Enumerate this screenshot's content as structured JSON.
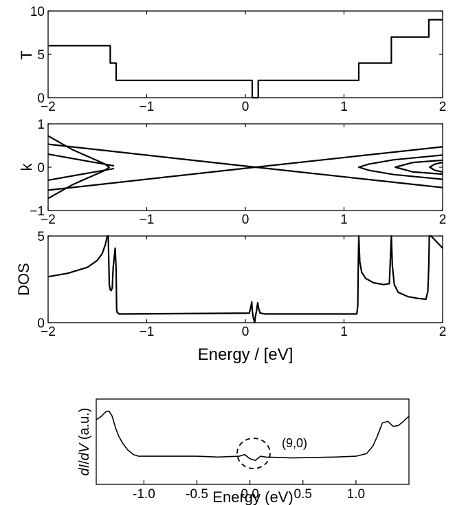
{
  "chart_data": [
    {
      "type": "line",
      "panel": "top",
      "ylabel": "T",
      "xlim": [
        -2,
        2
      ],
      "ylim": [
        0,
        10
      ],
      "xticks": [
        "−2",
        "−1",
        "0",
        "1",
        "2"
      ],
      "yticks": [
        "0",
        "5",
        "10"
      ],
      "series": [
        {
          "x": [
            -2,
            -1.37,
            -1.37,
            -1.31,
            -1.31,
            0.07,
            0.07,
            0.13,
            0.13,
            1.15,
            1.15,
            1.48,
            1.48,
            1.86,
            1.86,
            2.0
          ],
          "y": [
            6,
            6,
            4,
            4,
            2,
            2,
            0,
            0,
            2,
            2,
            4,
            4,
            7,
            7,
            9,
            9
          ]
        }
      ]
    },
    {
      "type": "line",
      "panel": "band",
      "ylabel": "k",
      "xlim": [
        -2,
        2
      ],
      "ylim": [
        -1,
        1
      ],
      "xticks": [
        "−2",
        "−1",
        "0",
        "1",
        "2"
      ],
      "yticks": [
        "−1",
        "0",
        "1"
      ],
      "series": [
        {
          "x": [
            -2.0,
            0.1,
            2.0
          ],
          "y": [
            0.53,
            0,
            0.47
          ]
        },
        {
          "x": [
            -2.0,
            0.1,
            2.0
          ],
          "y": [
            -0.53,
            0,
            -0.47
          ]
        },
        {
          "x": [
            -2.0,
            -1.33
          ],
          "y": [
            0.3,
            0.03
          ]
        },
        {
          "x": [
            -2.0,
            -1.33
          ],
          "y": [
            -0.3,
            -0.03
          ]
        },
        {
          "x": [
            -2.0,
            -1.75,
            -1.55,
            -1.43,
            -1.38,
            -1.43,
            -1.55,
            -1.75,
            -2.0
          ],
          "y": [
            0.72,
            0.4,
            0.2,
            0.08,
            0,
            -0.08,
            -0.2,
            -0.4,
            -0.72
          ]
        },
        {
          "x": [
            2.0,
            1.5,
            1.25,
            1.15,
            1.25,
            1.5,
            2.0
          ],
          "y": [
            0.28,
            0.17,
            0.07,
            0,
            -0.07,
            -0.17,
            -0.28
          ]
        },
        {
          "x": [
            2.0,
            1.7,
            1.52,
            1.7,
            2.0
          ],
          "y": [
            0.16,
            0.11,
            0,
            -0.11,
            -0.16
          ]
        },
        {
          "x": [
            2.0,
            1.92,
            1.87,
            1.92,
            2.0
          ],
          "y": [
            0.11,
            0.07,
            0,
            -0.07,
            -0.11
          ]
        }
      ]
    },
    {
      "type": "line",
      "panel": "dos",
      "ylabel": "DOS",
      "xlabel": "Energy / [eV]",
      "xlim": [
        -2,
        2
      ],
      "ylim": [
        0,
        5
      ],
      "xticks": [
        "−2",
        "−1",
        "0",
        "1",
        "2"
      ],
      "yticks": [
        "0",
        "5"
      ],
      "series": [
        {
          "x": [
            -2.0,
            -1.8,
            -1.6,
            -1.5,
            -1.45,
            -1.42,
            -1.4,
            -1.39,
            -1.38,
            -1.37,
            -1.36,
            -1.35,
            -1.34,
            -1.32,
            -1.31,
            -1.305,
            -1.3,
            -1.29,
            -1.28,
            -1.2,
            0.04,
            0.055,
            0.065,
            0.07,
            0.08,
            0.095,
            0.1,
            0.115,
            0.125,
            0.135,
            0.15,
            0.2,
            1.13,
            1.14,
            1.145,
            1.15,
            1.16,
            1.18,
            1.22,
            1.3,
            1.4,
            1.46,
            1.47,
            1.48,
            1.49,
            1.51,
            1.55,
            1.65,
            1.75,
            1.83,
            1.85,
            1.86,
            1.865,
            1.88,
            1.9,
            1.95,
            2.0
          ],
          "y": [
            2.65,
            2.85,
            3.2,
            3.6,
            4.0,
            4.5,
            5.0,
            5.0,
            2.2,
            1.9,
            1.85,
            2.0,
            3.2,
            4.3,
            3.0,
            0.8,
            0.6,
            0.55,
            0.5,
            0.5,
            0.55,
            0.9,
            1.2,
            0.7,
            0.3,
            0.0,
            0.3,
            0.75,
            1.15,
            0.8,
            0.55,
            0.5,
            0.5,
            1.0,
            3.5,
            5.0,
            3.5,
            2.9,
            2.55,
            2.3,
            2.2,
            2.25,
            3.6,
            5.0,
            3.3,
            2.2,
            1.75,
            1.5,
            1.4,
            1.35,
            1.8,
            3.3,
            5.0,
            5.0,
            4.9,
            4.6,
            4.3
          ]
        }
      ]
    },
    {
      "type": "line",
      "panel": "didv",
      "ylabel": "dI/dV (a.u.)",
      "xlabel": "Energy (eV)",
      "xlim": [
        -1.45,
        1.5
      ],
      "ylim": [
        0,
        1
      ],
      "xticks": [
        "-1.0",
        "-0.5",
        "0.0",
        "0.5",
        "1.0"
      ],
      "annotation": "(9,0)",
      "series": [
        {
          "x": [
            -1.45,
            -1.42,
            -1.4,
            -1.36,
            -1.33,
            -1.3,
            -1.27,
            -1.24,
            -1.2,
            -1.15,
            -1.1,
            -1.05,
            -0.5,
            -0.3,
            -0.1,
            -0.05,
            0.0,
            0.05,
            0.1,
            0.15,
            0.4,
            0.8,
            1.0,
            1.1,
            1.16,
            1.2,
            1.25,
            1.3,
            1.35,
            1.4,
            1.45,
            1.5
          ],
          "y": [
            0.76,
            0.78,
            0.8,
            0.85,
            0.86,
            0.8,
            0.67,
            0.57,
            0.48,
            0.4,
            0.35,
            0.33,
            0.33,
            0.32,
            0.33,
            0.35,
            0.3,
            0.28,
            0.33,
            0.32,
            0.31,
            0.32,
            0.33,
            0.36,
            0.45,
            0.56,
            0.72,
            0.74,
            0.68,
            0.69,
            0.74,
            0.8
          ]
        }
      ]
    }
  ]
}
